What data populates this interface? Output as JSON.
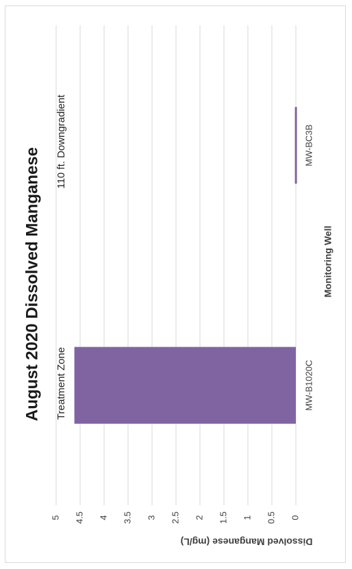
{
  "chart_data": {
    "type": "bar",
    "orientation": "rotated-90-ccw",
    "title": "August 2020 Dissolved Manganese",
    "xlabel": "Monitoring Well",
    "ylabel": "Dissolved Manganese (mg/L)",
    "categories": [
      "MW-B1020C",
      "MW-BC3B"
    ],
    "values": [
      4.62,
      0.02
    ],
    "ylim": [
      0,
      5
    ],
    "yticks": [
      "0",
      "0.5",
      "1",
      "1.5",
      "2",
      "2.5",
      "3",
      "3.5",
      "4",
      "4.5",
      "5"
    ],
    "grid": true,
    "bar_color": "#8064a2",
    "annotations": [
      "Treatment Zone",
      "110 ft. Downgradient"
    ]
  }
}
